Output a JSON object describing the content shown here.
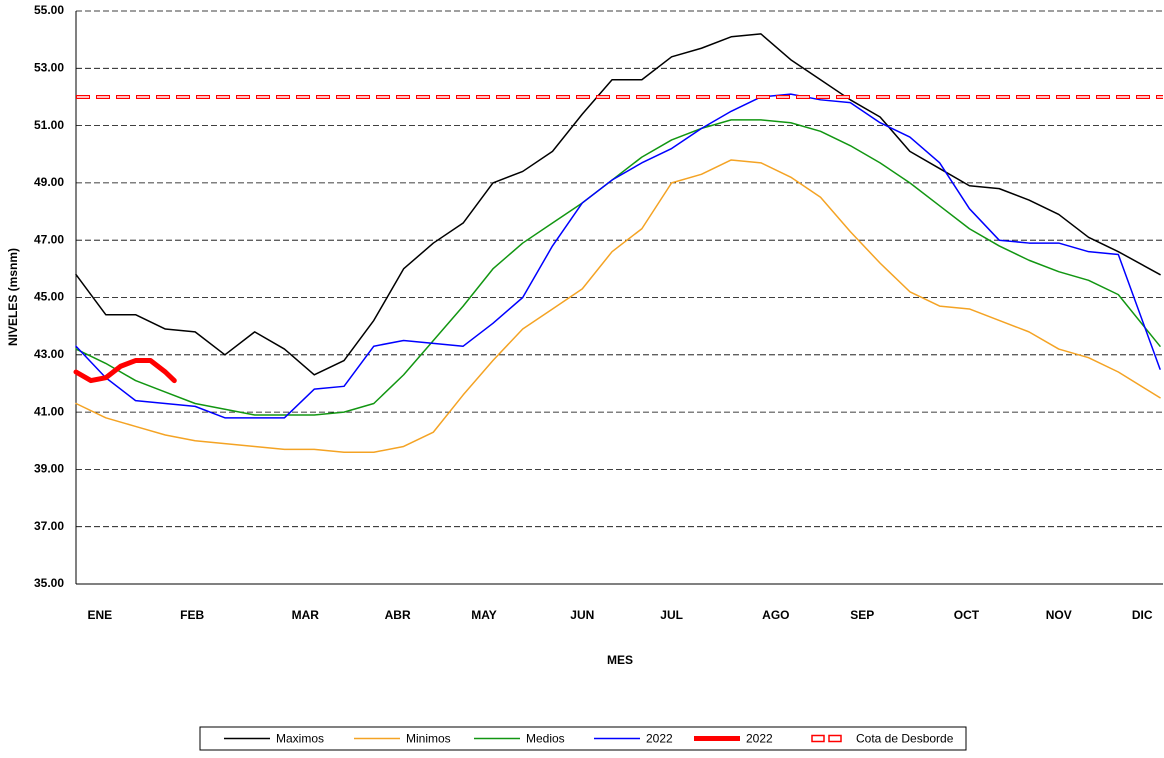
{
  "chart_data": {
    "type": "line",
    "y_label": "NIVELES (msnm)",
    "x_label": "MES",
    "xlim": [
      0,
      365
    ],
    "ylim": [
      35,
      55
    ],
    "xticks": [
      {
        "value": 8,
        "label": "ENE"
      },
      {
        "value": 39,
        "label": "FEB"
      },
      {
        "value": 77,
        "label": "MAR"
      },
      {
        "value": 108,
        "label": "ABR"
      },
      {
        "value": 137,
        "label": "MAY"
      },
      {
        "value": 170,
        "label": "JUN"
      },
      {
        "value": 200,
        "label": "JUL"
      },
      {
        "value": 235,
        "label": "AGO"
      },
      {
        "value": 264,
        "label": "SEP"
      },
      {
        "value": 299,
        "label": "OCT"
      },
      {
        "value": 330,
        "label": "NOV"
      },
      {
        "value": 358,
        "label": "DIC"
      }
    ],
    "yticks": [
      {
        "value": 35,
        "label": "35.00"
      },
      {
        "value": 37,
        "label": "37.00"
      },
      {
        "value": 39,
        "label": "39.00"
      },
      {
        "value": 41,
        "label": "41.00"
      },
      {
        "value": 43,
        "label": "43.00"
      },
      {
        "value": 45,
        "label": "45.00"
      },
      {
        "value": 47,
        "label": "47.00"
      },
      {
        "value": 49,
        "label": "49.00"
      },
      {
        "value": 51,
        "label": "51.00"
      },
      {
        "value": 53,
        "label": "53.00"
      },
      {
        "value": 55,
        "label": "55.00"
      }
    ],
    "grid": true,
    "legend": "bottom",
    "x": [
      0,
      10,
      20,
      30,
      40,
      50,
      60,
      70,
      80,
      90,
      100,
      110,
      120,
      130,
      140,
      150,
      160,
      170,
      180,
      190,
      200,
      210,
      220,
      230,
      240,
      250,
      260,
      270,
      280,
      290,
      300,
      310,
      320,
      330,
      340,
      350,
      364
    ],
    "series": [
      {
        "name": "Maximos",
        "color": "#000000",
        "width": 1.5,
        "values": [
          45.8,
          44.4,
          44.4,
          43.9,
          43.8,
          43.0,
          43.8,
          43.2,
          42.3,
          42.8,
          44.2,
          46.0,
          46.9,
          47.6,
          49.0,
          49.4,
          50.1,
          51.4,
          52.6,
          52.6,
          53.4,
          53.7,
          54.1,
          54.2,
          53.3,
          52.6,
          51.9,
          51.3,
          50.1,
          49.5,
          48.9,
          48.8,
          48.4,
          47.9,
          47.1,
          46.6,
          45.8
        ]
      },
      {
        "name": "Minimos",
        "color": "#f4a324",
        "width": 1.5,
        "values": [
          41.3,
          40.8,
          40.5,
          40.2,
          40.0,
          39.9,
          39.8,
          39.7,
          39.7,
          39.6,
          39.6,
          39.8,
          40.3,
          41.6,
          42.8,
          43.9,
          44.6,
          45.3,
          46.6,
          47.4,
          49.0,
          49.3,
          49.8,
          49.7,
          49.2,
          48.5,
          47.3,
          46.2,
          45.2,
          44.7,
          44.6,
          44.2,
          43.8,
          43.2,
          42.9,
          42.4,
          41.5
        ]
      },
      {
        "name": "Medios",
        "color": "#129612",
        "width": 1.5,
        "values": [
          43.2,
          42.7,
          42.1,
          41.7,
          41.3,
          41.1,
          40.9,
          40.9,
          40.9,
          41.0,
          41.3,
          42.3,
          43.5,
          44.7,
          46.0,
          46.9,
          47.6,
          48.3,
          49.1,
          49.9,
          50.5,
          50.9,
          51.2,
          51.2,
          51.1,
          50.8,
          50.3,
          49.7,
          49.0,
          48.2,
          47.4,
          46.8,
          46.3,
          45.9,
          45.6,
          45.1,
          43.3
        ]
      },
      {
        "name": "2022",
        "color": "#0000ff",
        "width": 1.5,
        "values": [
          43.3,
          42.2,
          41.4,
          41.3,
          41.2,
          40.8,
          40.8,
          40.8,
          41.8,
          41.9,
          43.3,
          43.5,
          43.4,
          43.3,
          44.1,
          45.0,
          46.8,
          48.3,
          49.1,
          49.7,
          50.2,
          50.9,
          51.5,
          52.0,
          52.1,
          51.9,
          51.8,
          51.1,
          50.6,
          49.7,
          48.1,
          47.0,
          46.9,
          46.9,
          46.6,
          46.5,
          42.5
        ]
      },
      {
        "name": "2022",
        "color": "#ff0000",
        "width": 5,
        "x": [
          0,
          5,
          10,
          15,
          20,
          25,
          30,
          33
        ],
        "values": [
          42.4,
          42.1,
          42.2,
          42.6,
          42.8,
          42.8,
          42.4,
          42.1
        ]
      },
      {
        "name": "Cota de Desborde",
        "color": "#ff0000",
        "width": 4,
        "dashed": true,
        "x": [
          0,
          365
        ],
        "values": [
          52,
          52
        ]
      }
    ]
  }
}
